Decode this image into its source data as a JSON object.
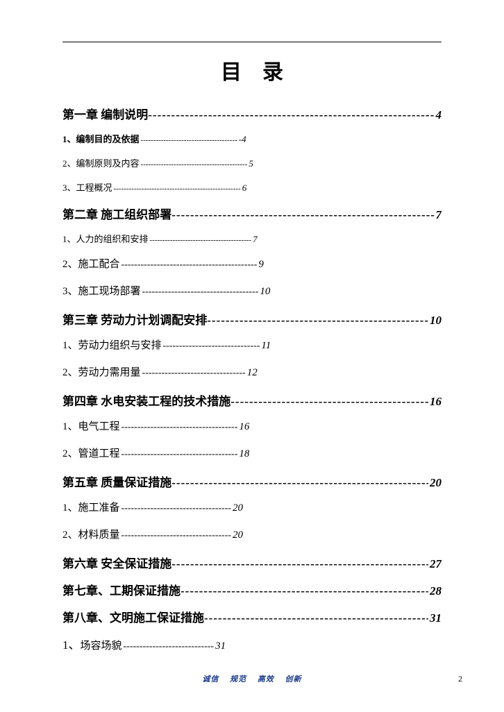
{
  "title": "目录",
  "chapters": [
    {
      "title": "第一章 编制说明",
      "page": "4",
      "subs": [
        {
          "num": "1、",
          "title": "编制目的及依据",
          "page": "-4",
          "bold": true,
          "dashlen": 38
        },
        {
          "num": "2、",
          "title": "编制原则及内容",
          "page": "5",
          "bold": false,
          "dashlen": 42
        },
        {
          "num": "3、",
          "title": "工程概况",
          "page": "6",
          "bold": false,
          "dashlen": 50
        }
      ]
    },
    {
      "title": "第二章  施工组织部署",
      "page": "7",
      "subs": [
        {
          "num": "1、",
          "title": "人力的组织和安排",
          "page": "7",
          "bold": false,
          "dashlen": 40
        },
        {
          "num": "2、",
          "title": "施工配合",
          "page": "9",
          "bold": false,
          "dashlen": 42,
          "big": true
        },
        {
          "num": "3、",
          "title": "施工现场部署",
          "page": "10",
          "bold": false,
          "dashlen": 36,
          "big": true,
          "spaced": true
        }
      ]
    },
    {
      "title": "第三章  劳动力计划调配安排",
      "page": " 10",
      "subs": [
        {
          "num": "1、",
          "title": "劳动力组织与安排",
          "page": "11",
          "bold": false,
          "dashlen": 30,
          "big": true,
          "spaced": true
        },
        {
          "num": "2、",
          "title": "劳动力需用量",
          "page": "12",
          "bold": false,
          "dashlen": 32,
          "big": true,
          "spaced": true
        }
      ]
    },
    {
      "title": "第四章  水电安装工程的技术措施",
      "page": " 16",
      "subs": [
        {
          "num": "1、",
          "title": "电气工程",
          "page": "16",
          "bold": false,
          "dashlen": 36,
          "big": true
        },
        {
          "num": "2、",
          "title": "管道工程",
          "page": " 18",
          "bold": false,
          "dashlen": 36,
          "big": true,
          "spaced": true
        }
      ]
    },
    {
      "title": "第五章  质量保证措施",
      "page": "20",
      "subs": [
        {
          "num": "1、",
          "title": "施工准备",
          "page": "20",
          "bold": false,
          "dashlen": 34,
          "big": true
        },
        {
          "num": "2、",
          "title": "材料质量",
          "page": " 20",
          "bold": false,
          "dashlen": 34,
          "big": true,
          "spaced": true
        }
      ]
    },
    {
      "title": "第六章  安全保证措施",
      "page": "27",
      "subs": []
    },
    {
      "title": "第七章、工期保证措施",
      "page": "28",
      "subs": []
    },
    {
      "title": "第八章、文明施工保证措施",
      "page": "31",
      "subs": [
        {
          "num": "1、",
          "title": " 场容场貌",
          "page": "31",
          "bold": false,
          "dashlen": 28,
          "big": true,
          "lgnum": true
        }
      ]
    }
  ],
  "footer": [
    "诚信",
    "规范",
    "高效",
    "创新"
  ],
  "page_number": "2",
  "colors": {
    "text": "#000000",
    "footer": "#1a3a8a",
    "background": "#ffffff"
  },
  "typography": {
    "title_fontsize": 30,
    "chapter_fontsize": 17,
    "sub_fontsize": 13,
    "sub_big_fontsize": 15,
    "footer_fontsize": 11
  }
}
